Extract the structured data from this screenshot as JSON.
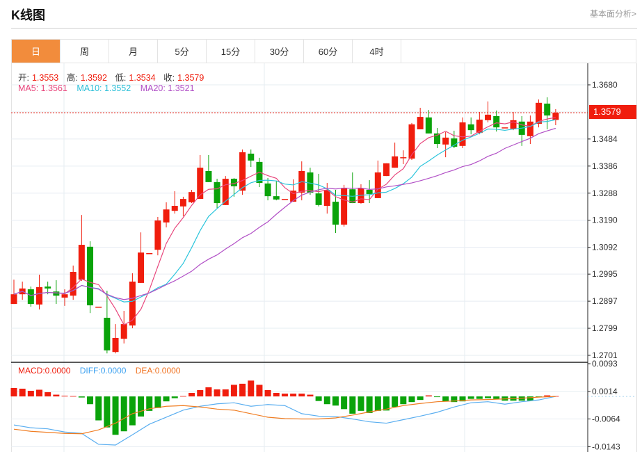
{
  "header": {
    "title": "K线图",
    "link": "基本面分析>"
  },
  "tabs": [
    {
      "label": "日",
      "active": true
    },
    {
      "label": "周"
    },
    {
      "label": "月"
    },
    {
      "label": "5分"
    },
    {
      "label": "15分"
    },
    {
      "label": "30分"
    },
    {
      "label": "60分"
    },
    {
      "label": "4时"
    }
  ],
  "info": {
    "open_label": "开:",
    "open": "1.3553",
    "high_label": "高:",
    "high": "1.3592",
    "low_label": "低:",
    "low": "1.3534",
    "close_label": "收:",
    "close": "1.3579",
    "ma5": "MA5: 1.3561",
    "ma10": "MA10: 1.3552",
    "ma20": "MA20: 1.3521"
  },
  "macd_info": {
    "macd": "MACD:0.0000",
    "diff": "DIFF:0.0000",
    "dea": "DEA:0.0000"
  },
  "current_price": "1.3579",
  "colors": {
    "up": "#f01d0d",
    "down": "#0aa30a",
    "ma5": "#e8467c",
    "ma10": "#2bc5dc",
    "ma20": "#b14fc6",
    "diff": "#5aaef0",
    "dea": "#f07d22",
    "tab_active": "#f28c3c"
  },
  "chart_data": [
    {
      "type": "candlestick",
      "price_ticks": [
        "1.3680",
        "1.3484",
        "1.3386",
        "1.3288",
        "1.3190",
        "1.3092",
        "1.2995",
        "1.2897",
        "1.2799",
        "1.2701"
      ],
      "ylim": [
        1.2701,
        1.368
      ],
      "grid": true,
      "ohlc": [
        [
          1.2887,
          1.2975,
          1.2887,
          1.2922
        ],
        [
          1.2922,
          1.2968,
          1.2902,
          1.2943
        ],
        [
          1.294,
          1.295,
          1.2877,
          1.2887
        ],
        [
          1.2885,
          1.2993,
          1.2867,
          1.2948
        ],
        [
          1.295,
          1.2968,
          1.2922,
          1.2943
        ],
        [
          1.2932,
          1.2973,
          1.2887,
          1.2917
        ],
        [
          1.291,
          1.294,
          1.288,
          1.2922
        ],
        [
          1.2917,
          1.3026,
          1.2902,
          1.3003
        ],
        [
          1.2975,
          1.3209,
          1.297,
          1.3101
        ],
        [
          1.3094,
          1.3114,
          1.2854,
          1.2882
        ],
        [
          1.2877,
          1.2877,
          1.2877,
          1.2877
        ],
        [
          1.2837,
          1.2935,
          1.2708,
          1.2719
        ],
        [
          1.2713,
          1.2814,
          1.2708,
          1.2764
        ],
        [
          1.2761,
          1.2862,
          1.2744,
          1.2814
        ],
        [
          1.2809,
          1.2998,
          1.2799,
          1.2968
        ],
        [
          1.2963,
          1.3146,
          1.2963,
          1.3073
        ],
        [
          1.3071,
          1.3071,
          1.3071,
          1.3071
        ],
        [
          1.3083,
          1.3202,
          1.3063,
          1.3189
        ],
        [
          1.3182,
          1.3255,
          1.3164,
          1.3229
        ],
        [
          1.3224,
          1.3295,
          1.3214,
          1.3242
        ],
        [
          1.324,
          1.3275,
          1.3204,
          1.3267
        ],
        [
          1.3255,
          1.33,
          1.3252,
          1.3292
        ],
        [
          1.3267,
          1.3426,
          1.3267,
          1.338
        ],
        [
          1.3368,
          1.3426,
          1.3328,
          1.3328
        ],
        [
          1.3328,
          1.334,
          1.3234,
          1.3252
        ],
        [
          1.3245,
          1.335,
          1.3245,
          1.334
        ],
        [
          1.334,
          1.3343,
          1.3275,
          1.3313
        ],
        [
          1.3297,
          1.3446,
          1.3282,
          1.3436
        ],
        [
          1.3431,
          1.3446,
          1.3383,
          1.3406
        ],
        [
          1.3401,
          1.3416,
          1.331,
          1.3325
        ],
        [
          1.3323,
          1.3343,
          1.3262,
          1.3277
        ],
        [
          1.3277,
          1.3333,
          1.3262,
          1.3265
        ],
        [
          1.3267,
          1.3267,
          1.3267,
          1.3267
        ],
        [
          1.3257,
          1.3338,
          1.3257,
          1.3297
        ],
        [
          1.329,
          1.3403,
          1.3262,
          1.3368
        ],
        [
          1.3363,
          1.338,
          1.3282,
          1.329
        ],
        [
          1.3287,
          1.3358,
          1.324,
          1.3245
        ],
        [
          1.3242,
          1.3325,
          1.3214,
          1.33
        ],
        [
          1.3257,
          1.33,
          1.3144,
          1.3174
        ],
        [
          1.3174,
          1.3318,
          1.3167,
          1.3307
        ],
        [
          1.3302,
          1.3363,
          1.3252,
          1.3252
        ],
        [
          1.3252,
          1.332,
          1.325,
          1.3305
        ],
        [
          1.33,
          1.3335,
          1.3252,
          1.3285
        ],
        [
          1.327,
          1.3406,
          1.327,
          1.3363
        ],
        [
          1.335,
          1.3396,
          1.335,
          1.3396
        ],
        [
          1.338,
          1.3471,
          1.338,
          1.3421
        ],
        [
          1.3418,
          1.3443,
          1.3393,
          1.3418
        ],
        [
          1.3413,
          1.3542,
          1.3408,
          1.3537
        ],
        [
          1.3519,
          1.3597,
          1.3519,
          1.3564
        ],
        [
          1.3562,
          1.3589,
          1.3504,
          1.3504
        ],
        [
          1.3504,
          1.3524,
          1.3451,
          1.3466
        ],
        [
          1.3464,
          1.3509,
          1.3418,
          1.3489
        ],
        [
          1.3486,
          1.3514,
          1.3451,
          1.3456
        ],
        [
          1.3459,
          1.3562,
          1.3451,
          1.3544
        ],
        [
          1.3537,
          1.3562,
          1.3501,
          1.3516
        ],
        [
          1.3506,
          1.3582,
          1.3501,
          1.3554
        ],
        [
          1.3552,
          1.362,
          1.3544,
          1.3572
        ],
        [
          1.3567,
          1.3587,
          1.3511,
          1.3526
        ],
        [
          1.3526,
          1.3526,
          1.3526,
          1.3526
        ],
        [
          1.3521,
          1.3582,
          1.3516,
          1.3552
        ],
        [
          1.3547,
          1.3567,
          1.3459,
          1.3499
        ],
        [
          1.3494,
          1.3569,
          1.3466,
          1.3547
        ],
        [
          1.3539,
          1.3627,
          1.3526,
          1.3615
        ],
        [
          1.3612,
          1.3635,
          1.3519,
          1.3569
        ],
        [
          1.3553,
          1.3592,
          1.3534,
          1.3579
        ]
      ],
      "moving_averages": [
        5,
        10,
        20
      ]
    },
    {
      "type": "macd",
      "ticks": [
        "0.0093",
        "0.0014",
        "-0.0064",
        "-0.0143"
      ],
      "ylim": [
        -0.0143,
        0.0093
      ],
      "histogram": [
        0.0024,
        0.0022,
        0.0016,
        0.0019,
        0.0012,
        0.0005,
        0.0002,
        0.0001,
        -0.0003,
        -0.0022,
        -0.0068,
        -0.0088,
        -0.0109,
        -0.0099,
        -0.0082,
        -0.0057,
        -0.0041,
        -0.0033,
        -0.0014,
        -0.0005,
        0.0001,
        0.001,
        0.0018,
        0.0026,
        0.002,
        0.002,
        0.0033,
        0.0036,
        0.0045,
        0.0033,
        0.0018,
        0.001,
        0.0008,
        0.0008,
        0.0008,
        0.0005,
        -0.0013,
        -0.0022,
        -0.0026,
        -0.0036,
        -0.0049,
        -0.0041,
        -0.0047,
        -0.0041,
        -0.004,
        -0.003,
        -0.0022,
        -0.0016,
        -0.001,
        0.0003,
        -0.0002,
        -0.0014,
        -0.0016,
        -0.0014,
        -0.0007,
        -0.0007,
        -0.0005,
        -0.0007,
        -0.0012,
        -0.0012,
        -0.0012,
        -0.0012,
        -0.0002,
        0.0003,
        0.0001
      ],
      "line_index": [
        0,
        2,
        4,
        6,
        8,
        10,
        12,
        14,
        16,
        18,
        20,
        22,
        24,
        26,
        28,
        30,
        32,
        34,
        36,
        38,
        40,
        42,
        44,
        46,
        48,
        50,
        52,
        54,
        56,
        58,
        60,
        62,
        64
      ],
      "diff": [
        -0.0081,
        -0.0089,
        -0.0092,
        -0.0101,
        -0.0105,
        -0.0136,
        -0.0138,
        -0.0109,
        -0.0079,
        -0.0059,
        -0.0039,
        -0.0028,
        -0.0021,
        -0.0018,
        -0.0028,
        -0.0023,
        -0.0026,
        -0.0049,
        -0.0056,
        -0.0057,
        -0.0064,
        -0.0072,
        -0.0076,
        -0.0066,
        -0.0056,
        -0.0045,
        -0.003,
        -0.0018,
        -0.0015,
        -0.0022,
        -0.0015,
        -0.001,
        0.0
      ],
      "dea": [
        -0.0093,
        -0.0099,
        -0.0102,
        -0.0105,
        -0.0106,
        -0.0095,
        -0.0076,
        -0.0049,
        -0.0035,
        -0.0028,
        -0.0026,
        -0.003,
        -0.0036,
        -0.0039,
        -0.0049,
        -0.0059,
        -0.0063,
        -0.0064,
        -0.0064,
        -0.0061,
        -0.0053,
        -0.0044,
        -0.0036,
        -0.0026,
        -0.002,
        -0.0015,
        -0.0013,
        -0.001,
        -0.0009,
        -0.0007,
        -0.0005,
        -0.0002,
        0.0
      ]
    }
  ]
}
